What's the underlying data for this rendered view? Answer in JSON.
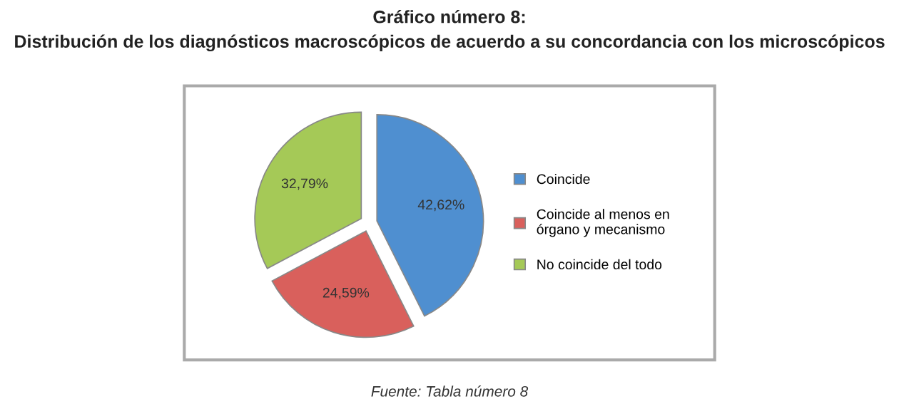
{
  "chart_data": {
    "type": "pie",
    "title": "Gráfico número 8:",
    "subtitle": "Distribución de los diagnósticos macroscópicos de acuerdo a su concordancia con los microscópicos",
    "categories": [
      "Coincide",
      "Coincide al menos en órgano y mecanismo",
      "No coincide del todo"
    ],
    "values": [
      42.62,
      24.59,
      32.79
    ],
    "colors": [
      "#4f8fd0",
      "#d9605c",
      "#a5c957"
    ],
    "value_labels": [
      "42,62%",
      "24,59%",
      "32,79%"
    ],
    "legend": "right",
    "annotations": [
      "Fuente: Tabla número 8"
    ]
  }
}
